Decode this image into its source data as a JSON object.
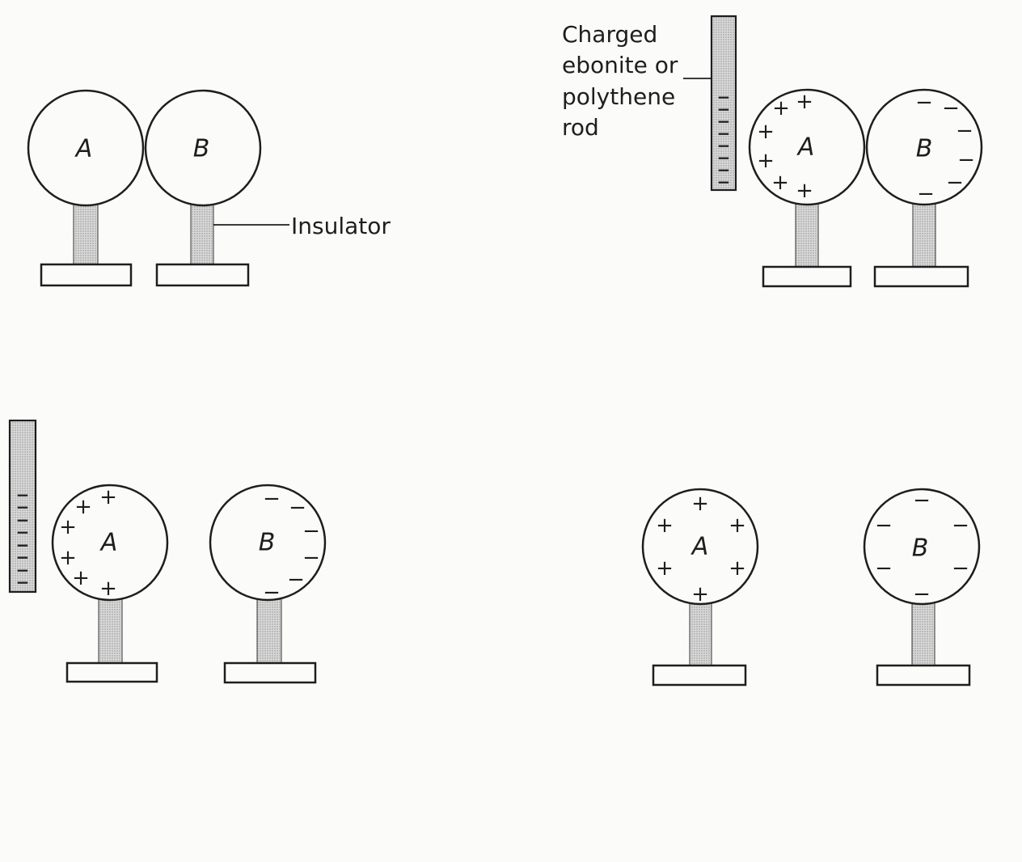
{
  "panels": [
    {
      "spheres": [
        {
          "label": "A"
        },
        {
          "label": "B"
        }
      ],
      "callout": "Insulator"
    },
    {
      "rod": {
        "caption": [
          "Charged",
          "ebonite or",
          "polythene",
          "rod"
        ],
        "charge": "−"
      },
      "spheres": [
        {
          "label": "A",
          "charge": "+"
        },
        {
          "label": "B",
          "charge": "−"
        }
      ]
    },
    {
      "rod": {
        "charge": "−"
      },
      "spheres": [
        {
          "label": "A",
          "charge": "+"
        },
        {
          "label": "B",
          "charge": "−"
        }
      ]
    },
    {
      "spheres": [
        {
          "label": "A",
          "charge": "+"
        },
        {
          "label": "B",
          "charge": "−"
        }
      ]
    }
  ],
  "colors": {
    "ink": "#1e1e1e",
    "paper": "#fbfbf9",
    "stipple_fill": "#d9d9d9",
    "stipple_dot": "#8c8c8c"
  }
}
